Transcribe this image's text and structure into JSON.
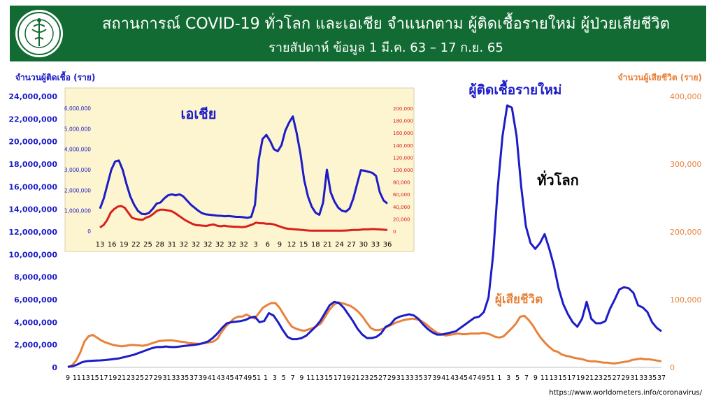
{
  "header": {
    "title": "สถานการณ์ COVID-19 ทั่วโลก และเอเชีย จำแนกตาม ผู้ติดเชื้อรายใหม่ ผู้ป่วยเสียชีวิต",
    "subtitle": "รายสัปดาห์ ข้อมูล 1 มี.ค. 63 – 17 ก.ย. 65",
    "logo_name": "ministry-of-public-health-seal",
    "background": "#126b32"
  },
  "source": "https://www.worldometers.info/coronavirus/",
  "chart_data": [
    {
      "id": "world",
      "type": "line",
      "label": "ทั่วโลก",
      "ylabel_left": "จำนวนผู้ติดเชื้อ (ราย)",
      "ylabel_right": "จำนวนผู้เสียชีวิต (ราย)",
      "ylim_left": [
        0,
        24000000
      ],
      "ylim_right": [
        0,
        400000
      ],
      "yticks_left": [
        "24,000,000",
        "22,000,000",
        "20,000,000",
        "18,000,000",
        "16,000,000",
        "14,000,000",
        "12,000,000",
        "10,000,000",
        "8,000,000",
        "6,000,000",
        "4,000,000",
        "2,000,000",
        "0"
      ],
      "yticks_right": [
        "400,000",
        "300,000",
        "200,000",
        "100,000",
        "0"
      ],
      "x_tick_labels": [
        "9",
        "11",
        "13",
        "15",
        "17",
        "19",
        "21",
        "23",
        "25",
        "27",
        "29",
        "31",
        "33",
        "35",
        "37",
        "39",
        "41",
        "43",
        "45",
        "47",
        "49",
        "51",
        "1",
        "3",
        "5",
        "7",
        "9",
        "11",
        "13",
        "15",
        "17",
        "19",
        "21",
        "23",
        "25",
        "27",
        "29",
        "31",
        "33",
        "35",
        "37",
        "39",
        "41",
        "43",
        "45",
        "47",
        "49",
        "51",
        "1",
        "3",
        "5",
        "7",
        "9",
        "11",
        "13",
        "15",
        "17",
        "19",
        "21",
        "23",
        "25",
        "27",
        "29",
        "31",
        "33",
        "35",
        "37"
      ],
      "grid": false,
      "series": [
        {
          "name": "ผู้ติดเชื้อรายใหม่",
          "axis": "left",
          "color": "#1c1cc8",
          "values": [
            50000,
            100000,
            250000,
            450000,
            550000,
            580000,
            600000,
            620000,
            650000,
            700000,
            750000,
            800000,
            900000,
            1000000,
            1100000,
            1250000,
            1400000,
            1550000,
            1700000,
            1800000,
            1800000,
            1850000,
            1800000,
            1800000,
            1850000,
            1900000,
            1950000,
            2000000,
            2050000,
            2150000,
            2300000,
            2600000,
            3000000,
            3500000,
            3900000,
            4000000,
            4050000,
            4100000,
            4200000,
            4400000,
            4500000,
            4000000,
            4100000,
            4800000,
            4600000,
            4000000,
            3300000,
            2700000,
            2500000,
            2500000,
            2600000,
            2800000,
            3200000,
            3600000,
            4100000,
            4800000,
            5500000,
            5800000,
            5700000,
            5300000,
            4700000,
            4100000,
            3400000,
            2900000,
            2600000,
            2600000,
            2700000,
            3000000,
            3600000,
            3800000,
            4300000,
            4500000,
            4600000,
            4700000,
            4600000,
            4300000,
            3800000,
            3400000,
            3100000,
            2900000,
            2900000,
            3000000,
            3100000,
            3200000,
            3500000,
            3800000,
            4100000,
            4400000,
            4500000,
            4900000,
            6200000,
            10000000,
            16000000,
            20500000,
            23200000,
            23000000,
            20500000,
            16000000,
            12500000,
            11000000,
            10500000,
            11000000,
            11800000,
            10500000,
            9000000,
            7000000,
            5600000,
            4700000,
            4000000,
            3600000,
            4300000,
            5800000,
            4300000,
            3900000,
            3900000,
            4100000,
            5200000,
            6000000,
            6900000,
            7100000,
            7000000,
            6600000,
            5500000,
            5300000,
            4900000,
            4000000,
            3500000,
            3200000
          ]
        },
        {
          "name": "ผู้เสียชีวิต",
          "axis": "right",
          "color": "#e8823a",
          "values": [
            500,
            3000,
            10000,
            22000,
            38000,
            46000,
            48000,
            44000,
            40000,
            37000,
            35000,
            33000,
            32000,
            31000,
            32000,
            33000,
            33000,
            32500,
            32000,
            33000,
            35000,
            37000,
            39000,
            39500,
            40000,
            40000,
            39000,
            38000,
            37500,
            36000,
            35500,
            35000,
            35000,
            36000,
            37000,
            38000,
            42000,
            52000,
            60000,
            66000,
            72000,
            75000,
            75000,
            78000,
            75000,
            72000,
            80000,
            88000,
            92000,
            95000,
            95000,
            88000,
            78000,
            68000,
            60000,
            57000,
            55000,
            54000,
            56000,
            58000,
            61000,
            65000,
            75000,
            85000,
            92000,
            96000,
            95000,
            93000,
            91000,
            87000,
            82000,
            75000,
            66000,
            58000,
            55000,
            55000,
            57000,
            60000,
            63000,
            66000,
            68000,
            70000,
            71000,
            72000,
            71000,
            69000,
            65000,
            60000,
            55000,
            51000,
            49000,
            47000,
            48000,
            49000,
            50000,
            49000,
            49000,
            50000,
            50000,
            50000,
            51000,
            50000,
            48000,
            45000,
            44000,
            46000,
            52000,
            58000,
            65000,
            75000,
            76000,
            70000,
            62000,
            52000,
            43000,
            36000,
            30000,
            25000,
            23000,
            19000,
            17000,
            16000,
            14000,
            13000,
            12000,
            10000,
            9000,
            9000,
            8000,
            7000,
            7000,
            6000,
            6000,
            7000,
            8000,
            9000,
            11000,
            12000,
            13000,
            12000,
            12000,
            11000,
            10000,
            9000
          ]
        }
      ],
      "annotations": [
        "ผู้ติดเชื้อรายใหม่",
        "ทั่วโลก",
        "ผู้เสียชีวิต"
      ]
    },
    {
      "id": "asia",
      "type": "line",
      "label": "เอเชีย",
      "ylim_left": [
        0,
        6000000
      ],
      "ylim_right": [
        0,
        200000
      ],
      "yticks_left": [
        "6,000,000",
        "5,000,000",
        "4,000,000",
        "3,000,000",
        "2,000,000",
        "1,000,000",
        "0"
      ],
      "yticks_right": [
        "200,000",
        "180,000",
        "160,000",
        "140,000",
        "120,000",
        "100,000",
        "80,000",
        "60,000",
        "40,000",
        "20,000",
        "0"
      ],
      "x_tick_labels": [
        "13",
        "16",
        "19",
        "22",
        "25",
        "28",
        "31",
        "32",
        "32",
        "32",
        "32",
        "32",
        "32",
        "3",
        "6",
        "9",
        "12",
        "15",
        "18",
        "21",
        "24",
        "27",
        "30",
        "33",
        "36"
      ],
      "series": [
        {
          "name": "ผู้ติดเชื้อรายใหม่",
          "axis": "left",
          "color": "#1c1cc8",
          "values": [
            1100000,
            1600000,
            2300000,
            3000000,
            3400000,
            3450000,
            3000000,
            2300000,
            1700000,
            1300000,
            1000000,
            850000,
            830000,
            900000,
            1100000,
            1350000,
            1400000,
            1600000,
            1750000,
            1800000,
            1750000,
            1800000,
            1700000,
            1500000,
            1300000,
            1150000,
            1000000,
            880000,
            820000,
            800000,
            780000,
            760000,
            750000,
            730000,
            740000,
            720000,
            700000,
            700000,
            680000,
            650000,
            700000,
            1300000,
            3500000,
            4500000,
            4700000,
            4400000,
            4000000,
            3900000,
            4200000,
            4900000,
            5300000,
            5600000,
            4800000,
            3800000,
            2500000,
            1700000,
            1200000,
            900000,
            800000,
            1400000,
            3000000,
            1900000,
            1450000,
            1150000,
            1000000,
            950000,
            1100000,
            1600000,
            2300000,
            2980000,
            2950000,
            2900000,
            2850000,
            2700000,
            1900000,
            1500000,
            1350000
          ]
        },
        {
          "name": "ผู้เสียชีวิต",
          "axis": "right",
          "color": "#d8201c",
          "values": [
            6000,
            10000,
            18000,
            30000,
            36000,
            40000,
            41000,
            38000,
            30000,
            22000,
            20000,
            19000,
            18500,
            22000,
            24000,
            28000,
            33000,
            35000,
            35000,
            34000,
            33000,
            30000,
            26000,
            22000,
            18000,
            15000,
            12000,
            10000,
            9500,
            9000,
            8500,
            10000,
            11000,
            9000,
            8000,
            9000,
            8000,
            7500,
            7000,
            7000,
            6500,
            7000,
            9000,
            11000,
            14000,
            13000,
            13000,
            12000,
            12000,
            11000,
            9000,
            7000,
            5000,
            4000,
            3500,
            3000,
            2500,
            2000,
            1500,
            1000,
            900,
            800,
            800,
            800,
            800,
            800,
            800,
            800,
            900,
            1000,
            1200,
            1800,
            2000,
            2200,
            2800,
            3000,
            3200,
            3500,
            3200,
            2800,
            2400,
            2000
          ]
        }
      ]
    }
  ]
}
